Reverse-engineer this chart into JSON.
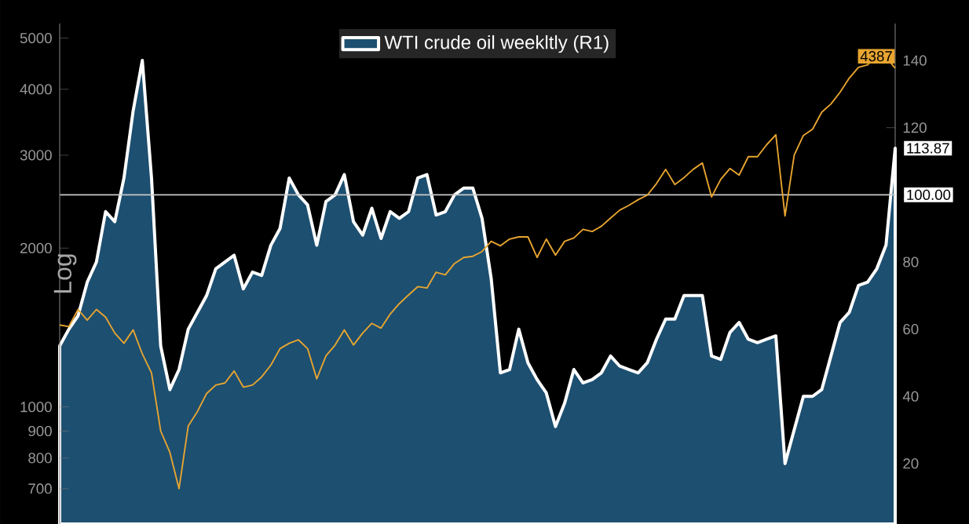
{
  "chart_data": {
    "type": "line",
    "ylabel": "Log",
    "log": "y",
    "legend": "top",
    "categories": [
      null,
      null,
      null,
      null,
      null,
      null,
      null,
      null,
      null,
      null,
      null,
      null,
      null,
      null,
      null,
      null,
      null,
      null,
      null,
      null,
      null,
      null,
      null,
      null,
      null,
      null,
      null,
      null,
      null,
      null,
      null,
      null,
      null,
      null,
      null,
      null,
      null,
      null,
      null,
      null,
      null,
      null,
      null,
      null,
      null,
      null,
      null,
      null,
      null,
      null,
      null,
      null,
      null,
      null,
      null,
      null,
      null,
      null,
      null,
      null,
      null,
      null,
      null,
      null,
      null,
      null,
      null,
      null,
      null,
      null,
      null,
      null,
      null,
      null,
      null,
      null,
      null,
      null,
      null,
      null,
      null,
      null,
      null,
      null,
      null,
      null,
      null,
      null,
      null,
      null,
      null,
      null
    ],
    "ylim": [
      600,
      5330
    ],
    "yticks": [
      700,
      800,
      900,
      1000,
      2000,
      3000,
      4000,
      5000
    ],
    "y2lim": [
      2,
      151
    ],
    "y2ticks": [
      20,
      40,
      60,
      80,
      100,
      120,
      140
    ],
    "ref_lines": [
      {
        "axis": "y2",
        "value": 100,
        "label": "100.00",
        "color": "#c8c8c8"
      }
    ],
    "series": [
      {
        "name": "WTI crude oil weekltly (R1)",
        "type": "area",
        "axis": "y2",
        "color": "#1d4f70",
        "values": [
          55,
          60,
          64,
          74,
          80,
          95,
          92,
          105,
          125,
          140,
          105,
          55,
          42,
          48,
          60,
          65,
          70,
          78,
          80,
          82,
          72,
          77,
          76,
          85,
          90,
          105,
          100,
          97,
          85,
          98,
          100,
          106,
          92,
          88,
          96,
          87,
          95,
          93,
          95,
          105,
          106,
          94,
          95,
          100,
          102,
          102,
          93,
          75,
          47,
          48,
          60,
          50,
          45,
          41,
          31,
          38,
          48,
          44,
          45,
          47,
          52,
          49,
          48,
          47,
          50,
          57,
          63,
          63,
          70,
          70,
          70,
          52,
          51,
          59,
          62,
          57,
          56,
          57,
          58,
          20,
          30,
          40,
          40,
          42,
          52,
          62,
          65,
          73,
          74,
          78,
          85,
          113.87
        ],
        "value_labels": [
          null,
          null,
          null,
          null,
          null,
          null,
          null,
          null,
          null,
          null,
          null,
          null,
          null,
          null,
          null,
          null,
          null,
          null,
          null,
          null,
          null,
          null,
          null,
          null,
          null,
          null,
          null,
          null,
          null,
          null,
          null,
          null,
          null,
          null,
          null,
          null,
          null,
          null,
          null,
          null,
          null,
          null,
          null,
          null,
          null,
          null,
          null,
          null,
          null,
          null,
          null,
          null,
          null,
          null,
          null,
          null,
          null,
          null,
          null,
          null,
          null,
          null,
          null,
          null,
          null,
          null,
          null,
          null,
          null,
          null,
          null,
          null,
          null,
          null,
          null,
          null,
          null,
          null,
          null,
          null,
          null,
          null,
          null,
          null,
          null,
          null,
          null,
          null,
          null,
          null,
          null,
          "113.87"
        ]
      },
      {
        "axis": "y",
        "color": "#e8a530",
        "values": [
          1430,
          1420,
          1530,
          1460,
          1530,
          1480,
          1380,
          1320,
          1400,
          1260,
          1160,
          900,
          820,
          700,
          920,
          980,
          1060,
          1100,
          1110,
          1170,
          1090,
          1100,
          1140,
          1200,
          1290,
          1320,
          1340,
          1290,
          1130,
          1250,
          1310,
          1400,
          1310,
          1380,
          1440,
          1410,
          1500,
          1570,
          1630,
          1690,
          1680,
          1800,
          1780,
          1870,
          1920,
          1930,
          1970,
          2060,
          2020,
          2080,
          2100,
          2100,
          1920,
          2080,
          1940,
          2060,
          2090,
          2170,
          2150,
          2200,
          2280,
          2360,
          2410,
          2470,
          2520,
          2650,
          2820,
          2640,
          2720,
          2820,
          2900,
          2500,
          2700,
          2830,
          2750,
          2980,
          2980,
          3140,
          3280,
          2300,
          3000,
          3270,
          3360,
          3620,
          3750,
          3950,
          4200,
          4400,
          4450,
          4650,
          4600,
          4387
        ],
        "value_labels": [
          null,
          null,
          null,
          null,
          null,
          null,
          null,
          null,
          null,
          null,
          null,
          null,
          null,
          null,
          null,
          null,
          null,
          null,
          null,
          null,
          null,
          null,
          null,
          null,
          null,
          null,
          null,
          null,
          null,
          null,
          null,
          null,
          null,
          null,
          null,
          null,
          null,
          null,
          null,
          null,
          null,
          null,
          null,
          null,
          null,
          null,
          null,
          null,
          null,
          null,
          null,
          null,
          null,
          null,
          null,
          null,
          null,
          null,
          null,
          null,
          null,
          null,
          null,
          null,
          null,
          null,
          null,
          null,
          null,
          null,
          null,
          null,
          null,
          null,
          null,
          null,
          null,
          null,
          null,
          null,
          null,
          null,
          null,
          null,
          null,
          null,
          null,
          null,
          null,
          null,
          null,
          "4387"
        ]
      }
    ]
  }
}
